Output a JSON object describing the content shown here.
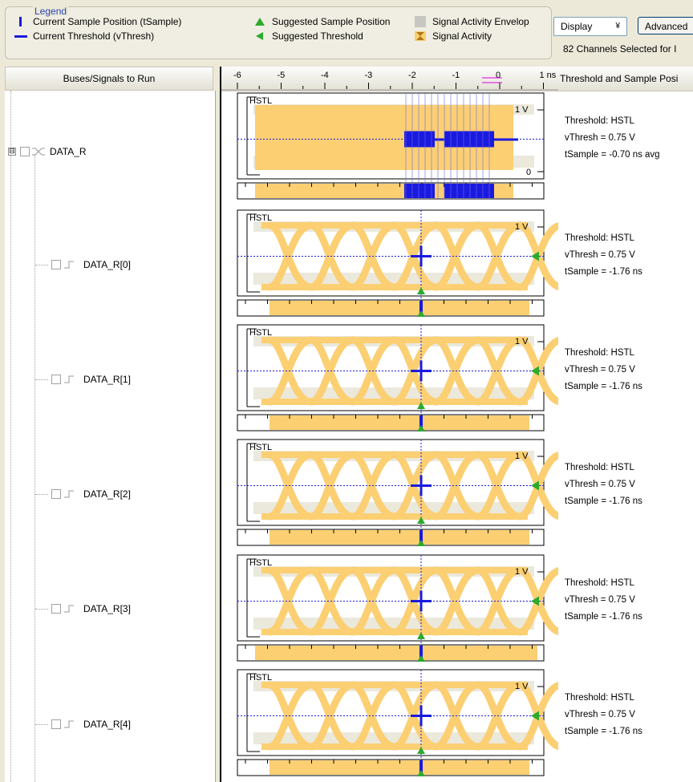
{
  "legend": {
    "title": "Legend",
    "items": [
      {
        "label": "Current Sample Position (tSample)",
        "icon": "current-sample-icon"
      },
      {
        "label": "Current Threshold (vThresh)",
        "icon": "current-threshold-icon"
      },
      {
        "label": "Suggested Sample Position",
        "icon": "suggested-sample-icon"
      },
      {
        "label": "Suggested Threshold",
        "icon": "suggested-threshold-icon"
      },
      {
        "label": "Signal Activity Envelop",
        "icon": "activity-envelope-icon"
      },
      {
        "label": "Signal Activity",
        "icon": "signal-activity-icon"
      }
    ]
  },
  "toolbar": {
    "display_label": "Display",
    "advanced_label": "Advanced",
    "channels_text": "82 Channels Selected for I"
  },
  "tree": {
    "header": "Buses/Signals to Run",
    "bus": {
      "label": "DATA_R",
      "expander": "⊟"
    },
    "signals": [
      {
        "label": "DATA_R[0]"
      },
      {
        "label": "DATA_R[1]"
      },
      {
        "label": "DATA_R[2]"
      },
      {
        "label": "DATA_R[3]"
      },
      {
        "label": "DATA_R[4]"
      }
    ]
  },
  "ruler": {
    "ticks": [
      "-6",
      "-5",
      "-4",
      "-3",
      "-2",
      "-1",
      "0",
      "1 ns"
    ]
  },
  "info_header": "Threshold and Sample Posi",
  "plots": [
    {
      "standard": "HSTL",
      "vmax": "1 V",
      "vmin": "0",
      "threshold": "Threshold: HSTL",
      "vthresh": "vThresh =  0.75 V",
      "tsample": "tSample = -0.70 ns avg"
    },
    {
      "standard": "HSTL",
      "vmax": "1 V",
      "threshold": "Threshold: HSTL",
      "vthresh": "vThresh =  0.75 V",
      "tsample": "tSample = -1.76 ns"
    },
    {
      "standard": "HSTL",
      "vmax": "1 V",
      "threshold": "Threshold: HSTL",
      "vthresh": "vThresh =  0.75 V",
      "tsample": "tSample = -1.76 ns"
    },
    {
      "standard": "HSTL",
      "vmax": "1 V",
      "threshold": "Threshold: HSTL",
      "vthresh": "vThresh =  0.75 V",
      "tsample": "tSample = -1.76 ns"
    },
    {
      "standard": "HSTL",
      "vmax": "1 V",
      "threshold": "Threshold: HSTL",
      "vthresh": "vThresh =  0.75 V",
      "tsample": "tSample = -1.76 ns"
    },
    {
      "standard": "HSTL",
      "vmax": "1 V",
      "threshold": "Threshold: HSTL",
      "vthresh": "vThresh =  0.75 V",
      "tsample": "tSample = -1.76 ns"
    }
  ],
  "colors": {
    "signal": "#fbcf72",
    "marker": "#1a1adf",
    "suggested": "#2eaa2e",
    "envelope": "#ebe8dc",
    "magenta": "#e000e0"
  }
}
